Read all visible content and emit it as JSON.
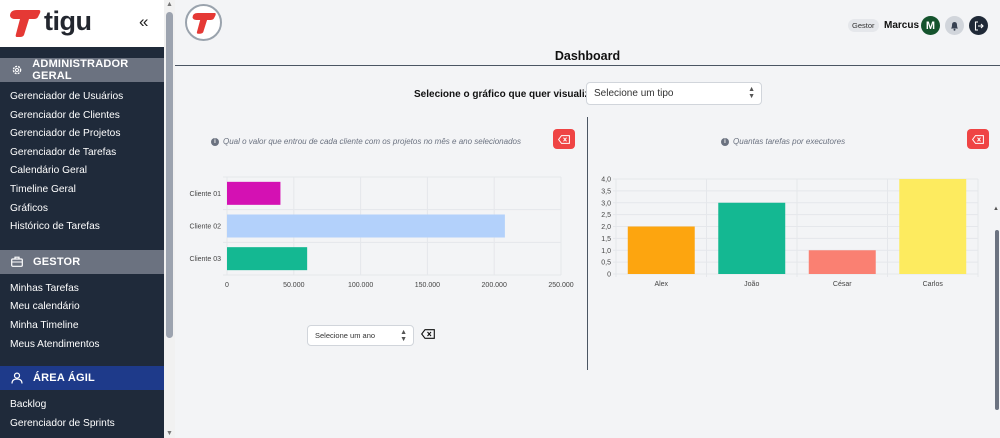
{
  "brand": {
    "name": "tigu",
    "collapse_icon": "double-chevron-left-icon",
    "logo_color": "#e53935"
  },
  "sidebar": {
    "sections": [
      {
        "title": "ADMINISTRADOR GERAL",
        "icon": "gear-icon",
        "items": [
          "Gerenciador de Usuários",
          "Gerenciador de Clientes",
          "Gerenciador de Projetos",
          "Gerenciador de Tarefas",
          "Calendário Geral",
          "Timeline Geral",
          "Gráficos",
          "Histórico de Tarefas"
        ]
      },
      {
        "title": "GESTOR",
        "icon": "briefcase-icon",
        "items": [
          "Minhas Tarefas",
          "Meu calendário",
          "Minha Timeline",
          "Meus Atendimentos"
        ]
      },
      {
        "title": "ÁREA ÁGIL",
        "icon": "user-icon",
        "items": [
          "Backlog",
          "Gerenciador de Sprints"
        ]
      }
    ]
  },
  "header": {
    "role": "Gestor",
    "user": "Marcus",
    "avatar_initial": "M"
  },
  "page": {
    "title": "Dashboard",
    "selector_label": "Selecione o gráfico que quer visualizar:",
    "selector_placeholder": "Selecione um tipo",
    "year_placeholder": "Selecione um ano"
  },
  "chart_data": [
    {
      "type": "bar",
      "orientation": "horizontal",
      "title": "Qual o valor que entrou de cada cliente com os projetos no mês e ano selecionados",
      "categories": [
        "Cliente 01",
        "Cliente 02",
        "Cliente 03"
      ],
      "values": [
        40000,
        208000,
        60000
      ],
      "colors": [
        "#d411b3",
        "#b3d1fb",
        "#14b892"
      ],
      "xlim": [
        0,
        250000
      ],
      "xticks": [
        "0",
        "50.000",
        "100.000",
        "150.000",
        "200.000",
        "250.000"
      ],
      "grid": true
    },
    {
      "type": "bar",
      "orientation": "vertical",
      "title": "Quantas tarefas por executores",
      "categories": [
        "Alex",
        "João",
        "César",
        "Carlos"
      ],
      "values": [
        2,
        3,
        1,
        4
      ],
      "colors": [
        "#fda50f",
        "#14b892",
        "#fa8072",
        "#fdeb5f"
      ],
      "ylim": [
        0,
        4
      ],
      "yticks": [
        "0",
        "0,5",
        "1,0",
        "1,5",
        "2,0",
        "2,5",
        "3,0",
        "3,5",
        "4,0"
      ],
      "grid": true
    }
  ]
}
